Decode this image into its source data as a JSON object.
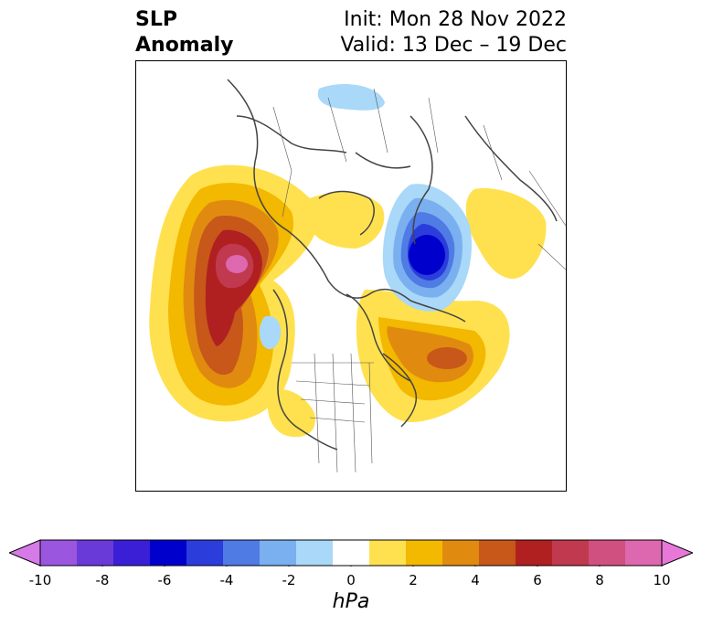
{
  "title": {
    "left_line1": "SLP",
    "left_line2": "Anomaly",
    "right_line1": "Init: Mon 28 Nov 2022",
    "right_line2": "Valid: 13 Dec – 19 Dec"
  },
  "colorbar": {
    "units": "hPa",
    "min": -10,
    "max": 10,
    "levels": [
      -10,
      -9,
      -8,
      -7,
      -6,
      -5,
      -4,
      -3,
      -2,
      -1,
      1,
      2,
      3,
      4,
      5,
      6,
      7,
      8,
      9,
      10
    ],
    "tick_values": [
      -10,
      -8,
      -6,
      -4,
      -2,
      0,
      2,
      4,
      6,
      8,
      10
    ],
    "tick_labels": [
      "-10",
      "-8",
      "-6",
      "-4",
      "-2",
      "0",
      "2",
      "4",
      "6",
      "8",
      "10"
    ],
    "colors": [
      "#d67ae8",
      "#9b56e0",
      "#6a3ad8",
      "#3a1fd6",
      "#0000cc",
      "#2b3ddb",
      "#4f7be5",
      "#7ab0f0",
      "#a9d8f8",
      "#ffffff",
      "#ffe14f",
      "#f3b800",
      "#e08b10",
      "#c8571a",
      "#b02020",
      "#c0394e",
      "#d05080",
      "#de68b0",
      "#e878d8"
    ],
    "extend": "both"
  },
  "map": {
    "projection": "north-polar-stereographic",
    "anomaly_centers": [
      {
        "label": "positive",
        "region": "Gulf of Alaska / NE Pacific",
        "peak_hpa": 8
      },
      {
        "label": "positive",
        "region": "North Atlantic south of Iceland",
        "peak_hpa": 5
      },
      {
        "label": "positive",
        "region": "Scandinavia",
        "peak_hpa": 1
      },
      {
        "label": "positive",
        "region": "SW United States",
        "peak_hpa": 1
      },
      {
        "label": "negative",
        "region": "Kara Sea / NW Siberia",
        "peak_hpa": -6
      },
      {
        "label": "negative",
        "region": "NE Asia / Okhotsk",
        "peak_hpa": -2
      }
    ]
  }
}
